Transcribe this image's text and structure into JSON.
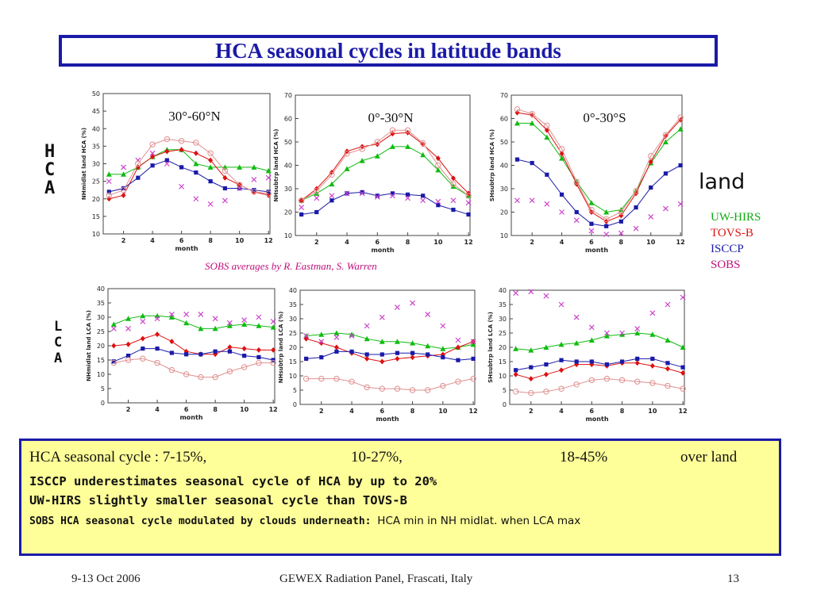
{
  "title": "HCA seasonal cycles in latitude bands",
  "row_labels": {
    "hca": [
      "H",
      "C",
      "A"
    ],
    "lca": [
      "L",
      "C",
      "A"
    ]
  },
  "land_label": "land",
  "legend": [
    {
      "label": "UW-HIRS",
      "color": "#11aa11"
    },
    {
      "label": "TOVS-B",
      "color": "#dd1111"
    },
    {
      "label": "ISCCP",
      "color": "#1a1aa8"
    },
    {
      "label": "SOBS",
      "color": "#c0117c"
    }
  ],
  "credit": "SOBS averages by R. Eastman, S. Warren",
  "summary": {
    "line1": [
      "HCA seasonal cycle : 7-15%,",
      "10-27%,",
      "18-45%",
      "over land"
    ],
    "line2": "ISCCP underestimates seasonal cycle of HCA by up to 20%",
    "line3": "UW-HIRS slightly smaller seasonal cycle than TOVS-B",
    "line4_bold": "SOBS HCA seasonal cycle modulated by clouds underneath:",
    "line4_plain": "HCA min in NH midlat. when LCA max"
  },
  "footer": {
    "left": "9-13 Oct 2006",
    "center": "GEWEX Radiation Panel, Frascati, Italy",
    "right": "13"
  },
  "series_styles": {
    "uw": {
      "color": "#11bb11",
      "marker": "triangle"
    },
    "tovs": {
      "color": "#dd1111",
      "marker": "diamond"
    },
    "isccp": {
      "color": "#1a1aa8",
      "marker": "square"
    },
    "sobs": {
      "color": "#cc44cc",
      "marker": "x"
    },
    "sobs_line": {
      "color": "#e09090",
      "marker": "circle"
    }
  },
  "chart_data": [
    {
      "type": "line",
      "title": "30°-60°N",
      "xlabel": "month",
      "ylabel": "NHmidlat land HCA (%)",
      "xlim": [
        1,
        12
      ],
      "ylim": [
        10,
        50
      ],
      "xticks": [
        2,
        4,
        6,
        8,
        10,
        12
      ],
      "yticks": [
        10,
        15,
        20,
        25,
        30,
        35,
        40,
        45,
        50
      ],
      "x": [
        1,
        2,
        3,
        4,
        5,
        6,
        7,
        8,
        9,
        10,
        11,
        12
      ],
      "series": [
        {
          "key": "uw",
          "values": [
            27,
            27,
            29,
            32,
            34,
            34,
            30,
            29,
            29,
            29,
            29,
            28
          ]
        },
        {
          "key": "tovs",
          "values": [
            20,
            21,
            29,
            32,
            33.5,
            34,
            33,
            31,
            26,
            24,
            22,
            21
          ]
        },
        {
          "key": "isccp",
          "values": [
            22,
            23,
            26,
            29.5,
            31,
            29,
            27.5,
            25,
            23,
            23,
            22.5,
            22
          ]
        },
        {
          "key": "sobs",
          "values": [
            25,
            29,
            31,
            33,
            30,
            23.5,
            20,
            18.5,
            19.5,
            23,
            25.5,
            26
          ]
        },
        {
          "key": "sobs_line",
          "values": [
            21,
            22.5,
            30,
            35.5,
            37,
            36.5,
            36,
            33,
            28,
            24,
            22,
            21.5
          ]
        }
      ]
    },
    {
      "type": "line",
      "title": "0°-30°N",
      "xlabel": "month",
      "ylabel": "NHsubtrp land HCA (%)",
      "xlim": [
        1,
        12
      ],
      "ylim": [
        10,
        70
      ],
      "xticks": [
        2,
        4,
        6,
        8,
        10,
        12
      ],
      "yticks": [
        10,
        20,
        30,
        40,
        50,
        60,
        70
      ],
      "x": [
        1,
        2,
        3,
        4,
        5,
        6,
        7,
        8,
        9,
        10,
        11,
        12
      ],
      "series": [
        {
          "key": "uw",
          "values": [
            25,
            28,
            32,
            38.5,
            42,
            44,
            48,
            48,
            44.5,
            38,
            31,
            27
          ]
        },
        {
          "key": "tovs",
          "values": [
            25,
            30,
            37,
            46,
            48,
            49,
            53.5,
            54,
            49,
            43,
            34.5,
            28
          ]
        },
        {
          "key": "isccp",
          "values": [
            19,
            20,
            25,
            28,
            28.5,
            27,
            28,
            27.5,
            27,
            23,
            21,
            19
          ]
        },
        {
          "key": "sobs",
          "values": [
            22,
            26,
            27,
            28,
            28,
            26.5,
            27,
            26,
            25,
            24.5,
            25,
            24
          ]
        },
        {
          "key": "sobs_line",
          "values": [
            25,
            29,
            36,
            45,
            47,
            50,
            55,
            55,
            49.5,
            40,
            32,
            27
          ]
        }
      ]
    },
    {
      "type": "line",
      "title": "0°-30°S",
      "xlabel": "month",
      "ylabel": "SHsubtrp land HCA (%)",
      "xlim": [
        1,
        12
      ],
      "ylim": [
        10,
        70
      ],
      "xticks": [
        2,
        4,
        6,
        8,
        10,
        12
      ],
      "yticks": [
        10,
        20,
        30,
        40,
        50,
        60,
        70
      ],
      "x": [
        1,
        2,
        3,
        4,
        5,
        6,
        7,
        8,
        9,
        10,
        11,
        12
      ],
      "series": [
        {
          "key": "uw",
          "values": [
            58,
            58,
            52,
            43,
            33,
            24,
            20,
            21,
            29,
            41,
            50,
            55.5
          ]
        },
        {
          "key": "tovs",
          "values": [
            62.5,
            61.5,
            55,
            45,
            32,
            20,
            16,
            18.5,
            28,
            41.5,
            52.5,
            59.5
          ]
        },
        {
          "key": "isccp",
          "values": [
            42.5,
            41,
            36,
            27.5,
            20,
            15,
            14,
            16,
            22,
            30.5,
            36.5,
            40
          ]
        },
        {
          "key": "sobs",
          "values": [
            25,
            25,
            23.5,
            20,
            16.5,
            12,
            10.5,
            11,
            13,
            18,
            21.5,
            23.5
          ]
        },
        {
          "key": "sobs_line",
          "values": [
            64,
            62,
            57,
            47,
            33,
            21,
            17,
            20,
            29,
            44,
            53,
            60.5
          ]
        }
      ]
    },
    {
      "type": "line",
      "xlabel": "month",
      "ylabel": "NHmidlat land LCA (%)",
      "xlim": [
        1,
        12
      ],
      "ylim": [
        0,
        40
      ],
      "xticks": [
        2,
        4,
        6,
        8,
        10,
        12
      ],
      "yticks": [
        0,
        5,
        10,
        15,
        20,
        25,
        30,
        35,
        40
      ],
      "x": [
        1,
        2,
        3,
        4,
        5,
        6,
        7,
        8,
        9,
        10,
        11,
        12
      ],
      "series": [
        {
          "key": "uw",
          "values": [
            27.5,
            29.5,
            30.5,
            30.5,
            30,
            28,
            26,
            26,
            27,
            27.5,
            27,
            26.5
          ]
        },
        {
          "key": "tovs",
          "values": [
            20,
            20.5,
            22.5,
            24,
            21.5,
            18,
            17,
            17,
            19.5,
            19,
            18.5,
            18.5
          ]
        },
        {
          "key": "isccp",
          "values": [
            14.5,
            16.5,
            19,
            19,
            17.5,
            17,
            17,
            18,
            18,
            16.5,
            16,
            15
          ]
        },
        {
          "key": "sobs",
          "values": [
            26,
            26,
            28.5,
            29.5,
            31,
            31,
            31,
            29.5,
            28,
            29,
            30,
            28.5
          ]
        },
        {
          "key": "sobs_line",
          "values": [
            14,
            15,
            15.5,
            14,
            11.5,
            10,
            9,
            9,
            11,
            12.5,
            14,
            14
          ]
        }
      ]
    },
    {
      "type": "line",
      "xlabel": "month",
      "ylabel": "NHsubtrp land LCA (%)",
      "xlim": [
        1,
        12
      ],
      "ylim": [
        0,
        40
      ],
      "xticks": [
        2,
        4,
        6,
        8,
        10,
        12
      ],
      "yticks": [
        0,
        5,
        10,
        15,
        20,
        25,
        30,
        35,
        40
      ],
      "x": [
        1,
        2,
        3,
        4,
        5,
        6,
        7,
        8,
        9,
        10,
        11,
        12
      ],
      "series": [
        {
          "key": "uw",
          "values": [
            24,
            24.5,
            25,
            24.5,
            23,
            22,
            22,
            21.5,
            20.5,
            19.5,
            20,
            21
          ]
        },
        {
          "key": "tovs",
          "values": [
            23,
            21.5,
            20,
            18,
            16,
            15,
            16,
            16.5,
            17,
            17.5,
            20,
            22
          ]
        },
        {
          "key": "isccp",
          "values": [
            16,
            16.5,
            18.5,
            18.5,
            17.5,
            17.5,
            18,
            18,
            17.5,
            16.5,
            15.5,
            16
          ]
        },
        {
          "key": "sobs",
          "values": [
            24,
            22,
            23.5,
            24,
            27.5,
            30.5,
            34,
            35.5,
            31.5,
            27.5,
            22.5,
            22
          ]
        },
        {
          "key": "sobs_line",
          "values": [
            9,
            9,
            9,
            8,
            6,
            5.5,
            5.5,
            5,
            5,
            6.5,
            8,
            9
          ]
        }
      ]
    },
    {
      "type": "line",
      "xlabel": "month",
      "ylabel": "SHsubtrp land LCA (%)",
      "xlim": [
        1,
        12
      ],
      "ylim": [
        0,
        40
      ],
      "xticks": [
        2,
        4,
        6,
        8,
        10,
        12
      ],
      "yticks": [
        0,
        5,
        10,
        15,
        20,
        25,
        30,
        35,
        40
      ],
      "x": [
        1,
        2,
        3,
        4,
        5,
        6,
        7,
        8,
        9,
        10,
        11,
        12
      ],
      "series": [
        {
          "key": "uw",
          "values": [
            19.5,
            19,
            20,
            21,
            21.5,
            22.5,
            24,
            24.5,
            25,
            24.5,
            22.5,
            20
          ]
        },
        {
          "key": "tovs",
          "values": [
            10.5,
            9,
            10.5,
            12,
            14,
            14,
            13.5,
            14.5,
            14.5,
            13.5,
            12.5,
            11
          ]
        },
        {
          "key": "isccp",
          "values": [
            12,
            13,
            14,
            15.5,
            15,
            15,
            14,
            15,
            16,
            16,
            14.5,
            13
          ]
        },
        {
          "key": "sobs",
          "values": [
            39,
            39.5,
            38,
            35,
            30.5,
            27,
            25,
            25,
            26.5,
            32,
            35,
            37.5
          ]
        },
        {
          "key": "sobs_line",
          "values": [
            4.5,
            4,
            4.5,
            5.5,
            7,
            8.5,
            9,
            8.5,
            8,
            7.5,
            6.5,
            5.5
          ]
        }
      ]
    }
  ]
}
